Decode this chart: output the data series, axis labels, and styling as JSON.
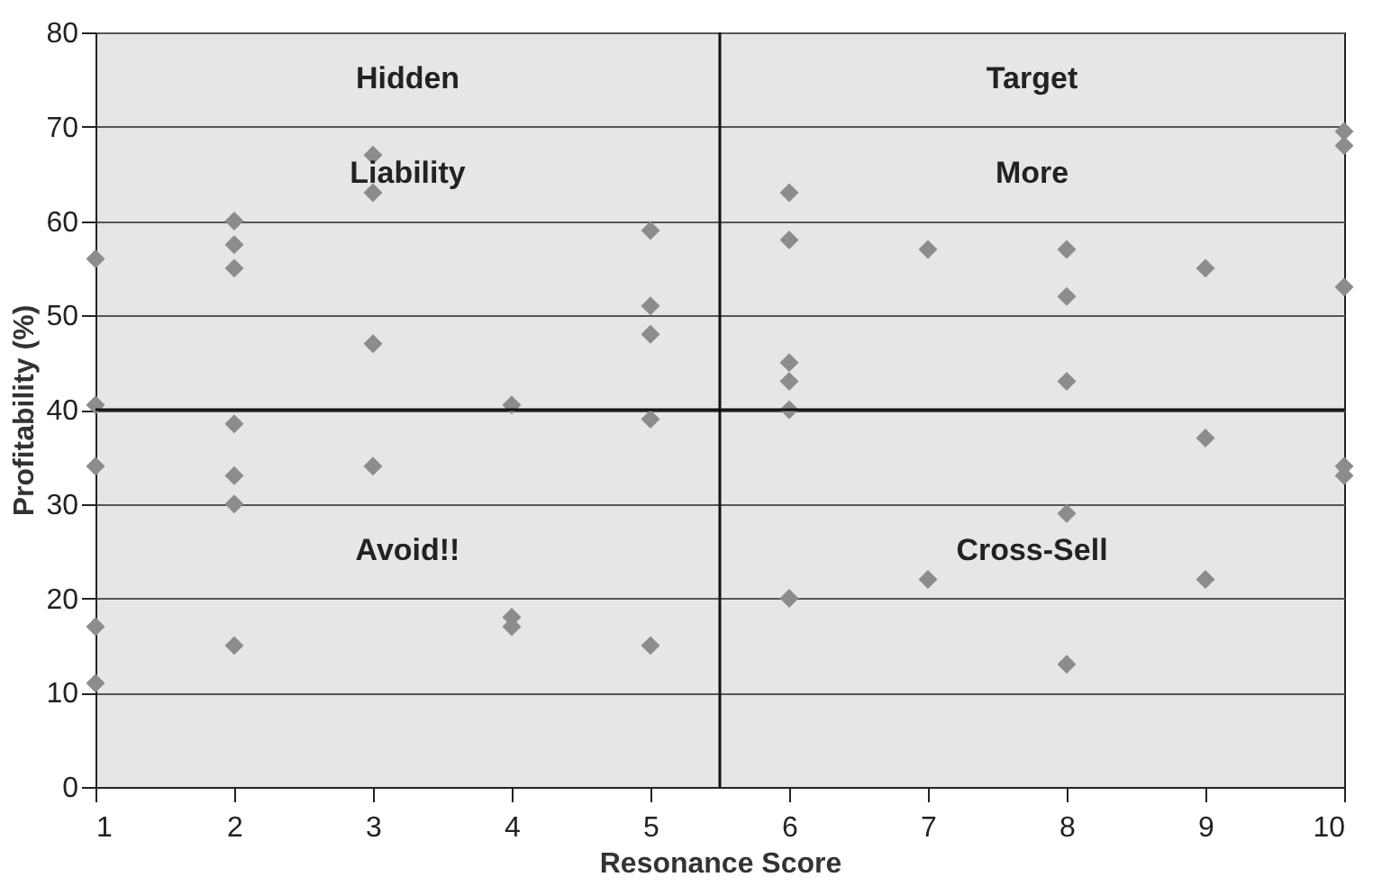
{
  "chart_data": {
    "type": "scatter",
    "xlabel": "Resonance Score",
    "ylabel": "Profitability (%)",
    "x": [
      1,
      1,
      1,
      1,
      1,
      2,
      2,
      2,
      2,
      2,
      2,
      2,
      3,
      3,
      3,
      3,
      4,
      4,
      4,
      5,
      5,
      5,
      5,
      5,
      6,
      6,
      6,
      6,
      6,
      6,
      7,
      7,
      8,
      8,
      8,
      8,
      8,
      9,
      9,
      9,
      10,
      10,
      10,
      10,
      10
    ],
    "values": [
      56,
      40.5,
      34,
      17,
      11,
      60,
      57.5,
      55,
      38.5,
      33,
      30,
      15,
      67,
      63,
      47,
      34,
      40.5,
      18,
      17,
      59,
      51,
      48,
      39,
      15,
      63,
      58,
      45,
      43,
      40,
      20,
      57,
      22,
      57,
      52,
      43,
      29,
      13,
      55,
      37,
      22,
      69.5,
      68,
      53,
      34,
      33
    ],
    "color": "#8c8c8c",
    "marker": "diamond",
    "xlim": [
      1,
      10
    ],
    "xticks": [
      1,
      2,
      3,
      4,
      5,
      6,
      7,
      8,
      9,
      10
    ],
    "ylim": [
      0,
      80
    ],
    "yticks": [
      0,
      10,
      20,
      30,
      40,
      50,
      60,
      70,
      80
    ],
    "grid": "y",
    "ref_lines": [
      {
        "axis": "x",
        "value": 5.5,
        "label": null
      },
      {
        "axis": "y",
        "value": 40,
        "label": null
      }
    ],
    "annotations": [
      "Hidden",
      "Liability",
      "Target",
      "More",
      "Avoid!!",
      "Cross-Sell"
    ]
  }
}
